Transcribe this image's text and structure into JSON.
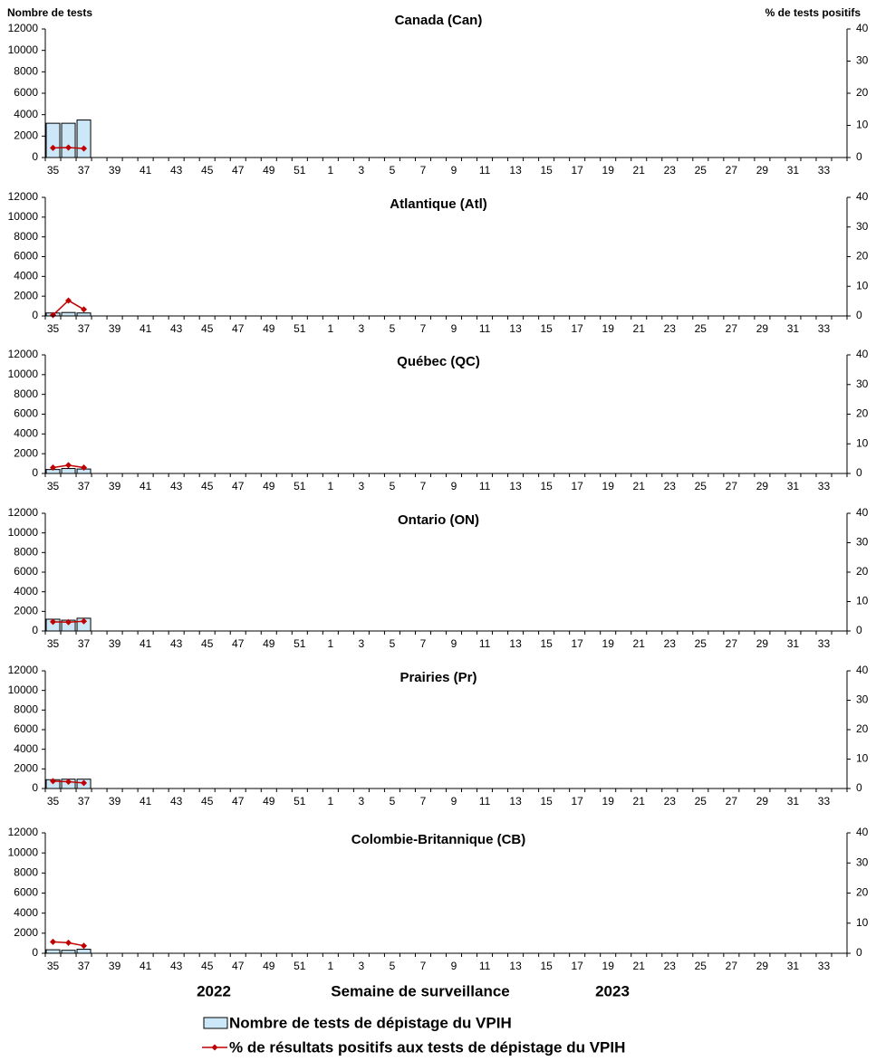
{
  "chart_data": [
    {
      "type": "bar_line",
      "title": "Canada (Can)",
      "ylabel": "Nombre de tests",
      "y2label": "% de tests positifs",
      "categories": [
        "35",
        null,
        "37",
        null,
        "39",
        null,
        "41",
        null,
        "43",
        null,
        "45",
        null,
        "47",
        null,
        "49",
        null,
        "51",
        null,
        "1",
        null,
        "3",
        null,
        "5",
        null,
        "7",
        null,
        "9",
        null,
        "11",
        null,
        "13",
        null,
        "15",
        null,
        "17",
        null,
        "19",
        null,
        "21",
        null,
        "23",
        null,
        "25",
        null,
        "27",
        null,
        "29",
        null,
        "31",
        null,
        "33",
        null
      ],
      "series": [
        {
          "name": "Nombre de tests de dépistage du VPIH",
          "color": "#cce8f8",
          "values": [
            3200,
            3200,
            3500,
            null,
            null,
            null,
            null,
            null,
            null,
            null,
            null,
            null,
            null,
            null,
            null,
            null,
            null,
            null,
            null,
            null,
            null,
            null,
            null,
            null,
            null,
            null,
            null,
            null,
            null,
            null,
            null,
            null,
            null,
            null,
            null,
            null,
            null,
            null,
            null,
            null,
            null,
            null,
            null,
            null,
            null,
            null,
            null,
            null,
            null,
            null,
            null,
            null
          ]
        },
        {
          "name": "% de résultats positifs aux tests de dépistage du VPIH",
          "color": "#c00000",
          "axis": "y2",
          "values": [
            3,
            3.1,
            2.8,
            null,
            null,
            null,
            null,
            null,
            null,
            null,
            null,
            null,
            null,
            null,
            null,
            null,
            null,
            null,
            null,
            null,
            null,
            null,
            null,
            null,
            null,
            null,
            null,
            null,
            null,
            null,
            null,
            null,
            null,
            null,
            null,
            null,
            null,
            null,
            null,
            null,
            null,
            null,
            null,
            null,
            null,
            null,
            null,
            null,
            null,
            null,
            null,
            null
          ]
        }
      ],
      "ylim": [
        0,
        12000
      ],
      "yticks": [
        0,
        2000,
        4000,
        6000,
        8000,
        10000,
        12000
      ],
      "y2lim": [
        0,
        40
      ],
      "y2ticks": [
        0,
        10,
        20,
        30,
        40
      ]
    },
    {
      "type": "bar_line",
      "title": "Atlantique (Atl)",
      "categories": [
        "35",
        null,
        "37",
        null,
        "39",
        null,
        "41",
        null,
        "43",
        null,
        "45",
        null,
        "47",
        null,
        "49",
        null,
        "51",
        null,
        "1",
        null,
        "3",
        null,
        "5",
        null,
        "7",
        null,
        "9",
        null,
        "11",
        null,
        "13",
        null,
        "15",
        null,
        "17",
        null,
        "19",
        null,
        "21",
        null,
        "23",
        null,
        "25",
        null,
        "27",
        null,
        "29",
        null,
        "31",
        null,
        "33",
        null
      ],
      "series": [
        {
          "color": "#cce8f8",
          "values": [
            300,
            350,
            300,
            null,
            null,
            null,
            null,
            null,
            null,
            null,
            null,
            null,
            null,
            null,
            null,
            null,
            null,
            null,
            null,
            null,
            null,
            null,
            null,
            null,
            null,
            null,
            null,
            null,
            null,
            null,
            null,
            null,
            null,
            null,
            null,
            null,
            null,
            null,
            null,
            null,
            null,
            null,
            null,
            null,
            null,
            null,
            null,
            null,
            null,
            null,
            null,
            null
          ]
        },
        {
          "color": "#c00000",
          "axis": "y2",
          "values": [
            0.3,
            5.2,
            2.2,
            null,
            null,
            null,
            null,
            null,
            null,
            null,
            null,
            null,
            null,
            null,
            null,
            null,
            null,
            null,
            null,
            null,
            null,
            null,
            null,
            null,
            null,
            null,
            null,
            null,
            null,
            null,
            null,
            null,
            null,
            null,
            null,
            null,
            null,
            null,
            null,
            null,
            null,
            null,
            null,
            null,
            null,
            null,
            null,
            null,
            null,
            null,
            null,
            null
          ]
        }
      ],
      "ylim": [
        0,
        12000
      ],
      "yticks": [
        0,
        2000,
        4000,
        6000,
        8000,
        10000,
        12000
      ],
      "y2lim": [
        0,
        40
      ],
      "y2ticks": [
        0,
        10,
        20,
        30,
        40
      ]
    },
    {
      "type": "bar_line",
      "title": "Québec (QC)",
      "categories": [
        "35",
        null,
        "37",
        null,
        "39",
        null,
        "41",
        null,
        "43",
        null,
        "45",
        null,
        "47",
        null,
        "49",
        null,
        "51",
        null,
        "1",
        null,
        "3",
        null,
        "5",
        null,
        "7",
        null,
        "9",
        null,
        "11",
        null,
        "13",
        null,
        "15",
        null,
        "17",
        null,
        "19",
        null,
        "21",
        null,
        "23",
        null,
        "25",
        null,
        "27",
        null,
        "29",
        null,
        "31",
        null,
        "33",
        null
      ],
      "series": [
        {
          "color": "#cce8f8",
          "values": [
            400,
            500,
            450,
            null,
            null,
            null,
            null,
            null,
            null,
            null,
            null,
            null,
            null,
            null,
            null,
            null,
            null,
            null,
            null,
            null,
            null,
            null,
            null,
            null,
            null,
            null,
            null,
            null,
            null,
            null,
            null,
            null,
            null,
            null,
            null,
            null,
            null,
            null,
            null,
            null,
            null,
            null,
            null,
            null,
            null,
            null,
            null,
            null,
            null,
            null,
            null,
            null
          ]
        },
        {
          "color": "#c00000",
          "axis": "y2",
          "values": [
            2,
            2.8,
            2,
            null,
            null,
            null,
            null,
            null,
            null,
            null,
            null,
            null,
            null,
            null,
            null,
            null,
            null,
            null,
            null,
            null,
            null,
            null,
            null,
            null,
            null,
            null,
            null,
            null,
            null,
            null,
            null,
            null,
            null,
            null,
            null,
            null,
            null,
            null,
            null,
            null,
            null,
            null,
            null,
            null,
            null,
            null,
            null,
            null,
            null,
            null,
            null,
            null
          ]
        }
      ],
      "ylim": [
        0,
        12000
      ],
      "yticks": [
        0,
        2000,
        4000,
        6000,
        8000,
        10000,
        12000
      ],
      "y2lim": [
        0,
        40
      ],
      "y2ticks": [
        0,
        10,
        20,
        30,
        40
      ]
    },
    {
      "type": "bar_line",
      "title": "Ontario (ON)",
      "categories": [
        "35",
        null,
        "37",
        null,
        "39",
        null,
        "41",
        null,
        "43",
        null,
        "45",
        null,
        "47",
        null,
        "49",
        null,
        "51",
        null,
        "1",
        null,
        "3",
        null,
        "5",
        null,
        "7",
        null,
        "9",
        null,
        "11",
        null,
        "13",
        null,
        "15",
        null,
        "17",
        null,
        "19",
        null,
        "21",
        null,
        "23",
        null,
        "25",
        null,
        "27",
        null,
        "29",
        null,
        "31",
        null,
        "33",
        null
      ],
      "series": [
        {
          "color": "#cce8f8",
          "values": [
            1200,
            1100,
            1300,
            null,
            null,
            null,
            null,
            null,
            null,
            null,
            null,
            null,
            null,
            null,
            null,
            null,
            null,
            null,
            null,
            null,
            null,
            null,
            null,
            null,
            null,
            null,
            null,
            null,
            null,
            null,
            null,
            null,
            null,
            null,
            null,
            null,
            null,
            null,
            null,
            null,
            null,
            null,
            null,
            null,
            null,
            null,
            null,
            null,
            null,
            null,
            null,
            null
          ]
        },
        {
          "color": "#c00000",
          "axis": "y2",
          "values": [
            3.1,
            3,
            3.3,
            null,
            null,
            null,
            null,
            null,
            null,
            null,
            null,
            null,
            null,
            null,
            null,
            null,
            null,
            null,
            null,
            null,
            null,
            null,
            null,
            null,
            null,
            null,
            null,
            null,
            null,
            null,
            null,
            null,
            null,
            null,
            null,
            null,
            null,
            null,
            null,
            null,
            null,
            null,
            null,
            null,
            null,
            null,
            null,
            null,
            null,
            null,
            null,
            null
          ]
        }
      ],
      "ylim": [
        0,
        12000
      ],
      "yticks": [
        0,
        2000,
        4000,
        6000,
        8000,
        10000,
        12000
      ],
      "y2lim": [
        0,
        40
      ],
      "y2ticks": [
        0,
        10,
        20,
        30,
        40
      ]
    },
    {
      "type": "bar_line",
      "title": "Prairies (Pr)",
      "categories": [
        "35",
        null,
        "37",
        null,
        "39",
        null,
        "41",
        null,
        "43",
        null,
        "45",
        null,
        "47",
        null,
        "49",
        null,
        "51",
        null,
        "1",
        null,
        "3",
        null,
        "5",
        null,
        "7",
        null,
        "9",
        null,
        "11",
        null,
        "13",
        null,
        "15",
        null,
        "17",
        null,
        "19",
        null,
        "21",
        null,
        "23",
        null,
        "25",
        null,
        "27",
        null,
        "29",
        null,
        "31",
        null,
        "33",
        null
      ],
      "series": [
        {
          "color": "#cce8f8",
          "values": [
            900,
            950,
            950,
            null,
            null,
            null,
            null,
            null,
            null,
            null,
            null,
            null,
            null,
            null,
            null,
            null,
            null,
            null,
            null,
            null,
            null,
            null,
            null,
            null,
            null,
            null,
            null,
            null,
            null,
            null,
            null,
            null,
            null,
            null,
            null,
            null,
            null,
            null,
            null,
            null,
            null,
            null,
            null,
            null,
            null,
            null,
            null,
            null,
            null,
            null,
            null,
            null
          ]
        },
        {
          "color": "#c00000",
          "axis": "y2",
          "values": [
            2.5,
            2.3,
            1.9,
            null,
            null,
            null,
            null,
            null,
            null,
            null,
            null,
            null,
            null,
            null,
            null,
            null,
            null,
            null,
            null,
            null,
            null,
            null,
            null,
            null,
            null,
            null,
            null,
            null,
            null,
            null,
            null,
            null,
            null,
            null,
            null,
            null,
            null,
            null,
            null,
            null,
            null,
            null,
            null,
            null,
            null,
            null,
            null,
            null,
            null,
            null,
            null,
            null
          ]
        }
      ],
      "ylim": [
        0,
        12000
      ],
      "yticks": [
        0,
        2000,
        4000,
        6000,
        8000,
        10000,
        12000
      ],
      "y2lim": [
        0,
        40
      ],
      "y2ticks": [
        0,
        10,
        20,
        30,
        40
      ]
    },
    {
      "type": "bar_line",
      "title": "Colombie-Britannique (CB)",
      "xlabel": "Semaine de surveillance",
      "annotations": [
        "2022",
        "2023"
      ],
      "categories": [
        "35",
        null,
        "37",
        null,
        "39",
        null,
        "41",
        null,
        "43",
        null,
        "45",
        null,
        "47",
        null,
        "49",
        null,
        "51",
        null,
        "1",
        null,
        "3",
        null,
        "5",
        null,
        "7",
        null,
        "9",
        null,
        "11",
        null,
        "13",
        null,
        "15",
        null,
        "17",
        null,
        "19",
        null,
        "21",
        null,
        "23",
        null,
        "25",
        null,
        "27",
        null,
        "29",
        null,
        "31",
        null,
        "33",
        null
      ],
      "series": [
        {
          "color": "#cce8f8",
          "values": [
            350,
            300,
            400,
            null,
            null,
            null,
            null,
            null,
            null,
            null,
            null,
            null,
            null,
            null,
            null,
            null,
            null,
            null,
            null,
            null,
            null,
            null,
            null,
            null,
            null,
            null,
            null,
            null,
            null,
            null,
            null,
            null,
            null,
            null,
            null,
            null,
            null,
            null,
            null,
            null,
            null,
            null,
            null,
            null,
            null,
            null,
            null,
            null,
            null,
            null,
            null,
            null
          ]
        },
        {
          "color": "#c00000",
          "axis": "y2",
          "values": [
            3.8,
            3.5,
            2.5,
            null,
            null,
            null,
            null,
            null,
            null,
            null,
            null,
            null,
            null,
            null,
            null,
            null,
            null,
            null,
            null,
            null,
            null,
            null,
            null,
            null,
            null,
            null,
            null,
            null,
            null,
            null,
            null,
            null,
            null,
            null,
            null,
            null,
            null,
            null,
            null,
            null,
            null,
            null,
            null,
            null,
            null,
            null,
            null,
            null,
            null,
            null,
            null,
            null
          ]
        }
      ],
      "ylim": [
        0,
        12000
      ],
      "yticks": [
        0,
        2000,
        4000,
        6000,
        8000,
        10000,
        12000
      ],
      "y2lim": [
        0,
        40
      ],
      "y2ticks": [
        0,
        10,
        20,
        30,
        40
      ]
    }
  ]
}
